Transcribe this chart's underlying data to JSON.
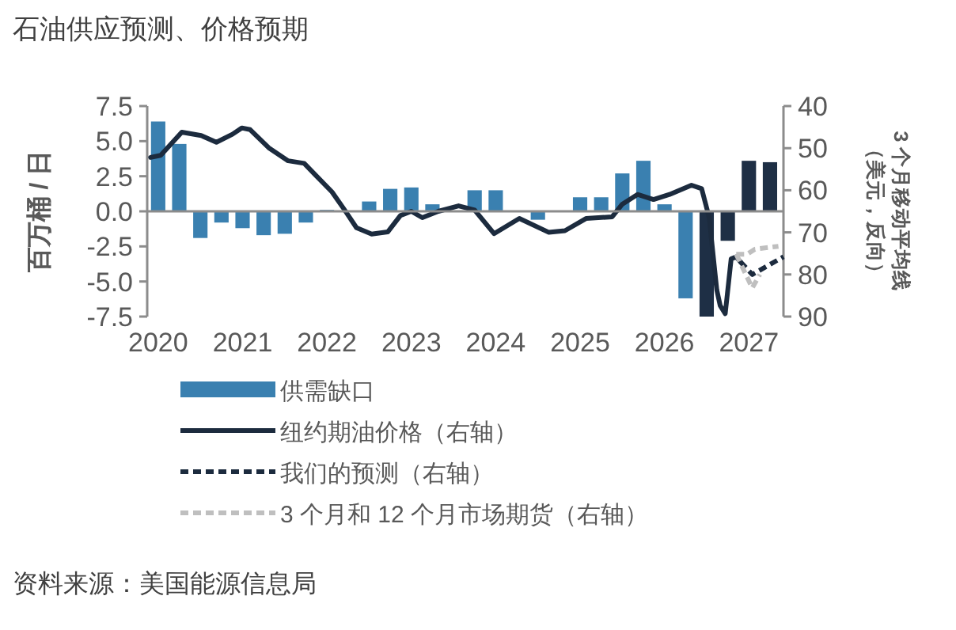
{
  "chart_data": {
    "type": "bar",
    "title": "石油供应预测、价格预期",
    "ylabel": "百万桶 / 日",
    "y2label": "3 个月移动平均线（美元，反向）",
    "xlim": [
      2019.87,
      2027.41
    ],
    "xticks": [
      2020,
      2021,
      2022,
      2023,
      2024,
      2025,
      2026,
      2027
    ],
    "ylim": [
      -7.5,
      7.5
    ],
    "yticks": [
      -7.5,
      {
        "value": -5,
        "label": "-5.0"
      },
      {
        "value": -2.5,
        "label": "-2.5"
      },
      {
        "value": 0,
        "label": "0.0"
      },
      {
        "value": 2.5,
        "label": "2.5"
      },
      {
        "value": 5,
        "label": "5.0"
      },
      7.5
    ],
    "y2lim": [
      90,
      40
    ],
    "y2ticks": [
      40,
      50,
      60,
      70,
      80,
      90
    ],
    "legend": "bottom",
    "annotations": [
      "资料来源：美国能源信息局"
    ],
    "series": [
      {
        "name": "供需缺口",
        "color": "#3a80b0",
        "x": [
          2020,
          2020.25,
          2020.5,
          2020.75,
          2021,
          2021.25,
          2021.5,
          2021.75,
          2022,
          2022.25,
          2022.5,
          2022.75,
          2023,
          2023.25,
          2023.5,
          2023.75,
          2024,
          2024.25,
          2024.5,
          2024.75,
          2025,
          2025.25,
          2025.5,
          2025.75,
          2026,
          2026.25,
          2026.5,
          2026.75,
          2027,
          2027.25
        ],
        "values": [
          6.4,
          4.8,
          -1.9,
          -0.8,
          -1.2,
          -1.7,
          -1.6,
          -0.8,
          0.1,
          0,
          0.7,
          1.6,
          1.7,
          0.5,
          null,
          1.5,
          1.5,
          0,
          -0.6,
          0,
          1.0,
          1.0,
          2.7,
          3.6,
          0.5,
          -6.2,
          -7.5,
          -2.1,
          3.6,
          3.5
        ],
        "colors": [
          "#3a80b0",
          "#3a80b0",
          "#3a80b0",
          "#3a80b0",
          "#3a80b0",
          "#3a80b0",
          "#3a80b0",
          "#3a80b0",
          "#3a80b0",
          "#3a80b0",
          "#3a80b0",
          "#3a80b0",
          "#3a80b0",
          "#3a80b0",
          "#3a80b0",
          "#3a80b0",
          "#3a80b0",
          "#3a80b0",
          "#3a80b0",
          "#3a80b0",
          "#3a80b0",
          "#3a80b0",
          "#3a80b0",
          "#3a80b0",
          "#3a80b0",
          "#3a80b0",
          "#1e2f45",
          "#1e2f45",
          "#1e2f45",
          "#1e2f45"
        ]
      },
      {
        "name": "纽约期油价格（右轴）",
        "type": "line",
        "axis": "y2",
        "color": "#1c2b3e",
        "line_style": "solid",
        "x": [
          2019.91,
          2020.03,
          2020.28,
          2020.51,
          2020.69,
          2020.88,
          2020.99,
          2021.09,
          2021.31,
          2021.54,
          2021.73,
          2021.88,
          2022.06,
          2022.21,
          2022.35,
          2022.53,
          2022.72,
          2022.87,
          2023.0,
          2023.13,
          2023.32,
          2023.56,
          2023.75,
          2023.98,
          2024.28,
          2024.63,
          2024.82,
          2025.07,
          2025.38,
          2025.5,
          2025.68,
          2025.87,
          2026.06,
          2026.32,
          2026.44,
          2026.53,
          2026.62,
          2026.66,
          2026.72,
          2026.79,
          2026.85,
          2026.9
        ],
        "values": [
          52.2,
          51.7,
          46.2,
          47,
          48.6,
          46.7,
          45.2,
          45.6,
          49.9,
          53,
          53.6,
          56.7,
          60.4,
          64.7,
          68.9,
          70.4,
          69.9,
          66,
          65,
          66.5,
          65,
          63.7,
          64.7,
          70.3,
          66.7,
          70,
          69.6,
          66.7,
          66.3,
          63.3,
          61,
          62.2,
          61,
          58.8,
          59.6,
          66.5,
          83.7,
          87.4,
          89.3,
          76.3,
          75.8,
          77
        ]
      },
      {
        "name": "我们的预测（右轴）",
        "type": "line",
        "axis": "y2",
        "color": "#1c2b3e",
        "line_style": "dashed",
        "x": [
          2026.9,
          2027.04,
          2027.41
        ],
        "values": [
          77,
          80,
          75.8
        ]
      },
      {
        "name": "3 个月和 12 个月市场期货（右轴）",
        "type": "line",
        "axis": "y2",
        "color": "#bfbfbf",
        "line_style": "dashed",
        "x": [
          2026.85,
          2026.98,
          2027.07,
          2027.35
        ],
        "values": [
          75.2,
          75.2,
          74,
          73.3
        ]
      },
      {
        "type": "line",
        "axis": "y2",
        "color": "#bfbfbf",
        "line_style": "dashed",
        "x": [
          2026.85,
          2027.04,
          2027.13
        ],
        "values": [
          75.2,
          83.2,
          80
        ]
      }
    ]
  }
}
